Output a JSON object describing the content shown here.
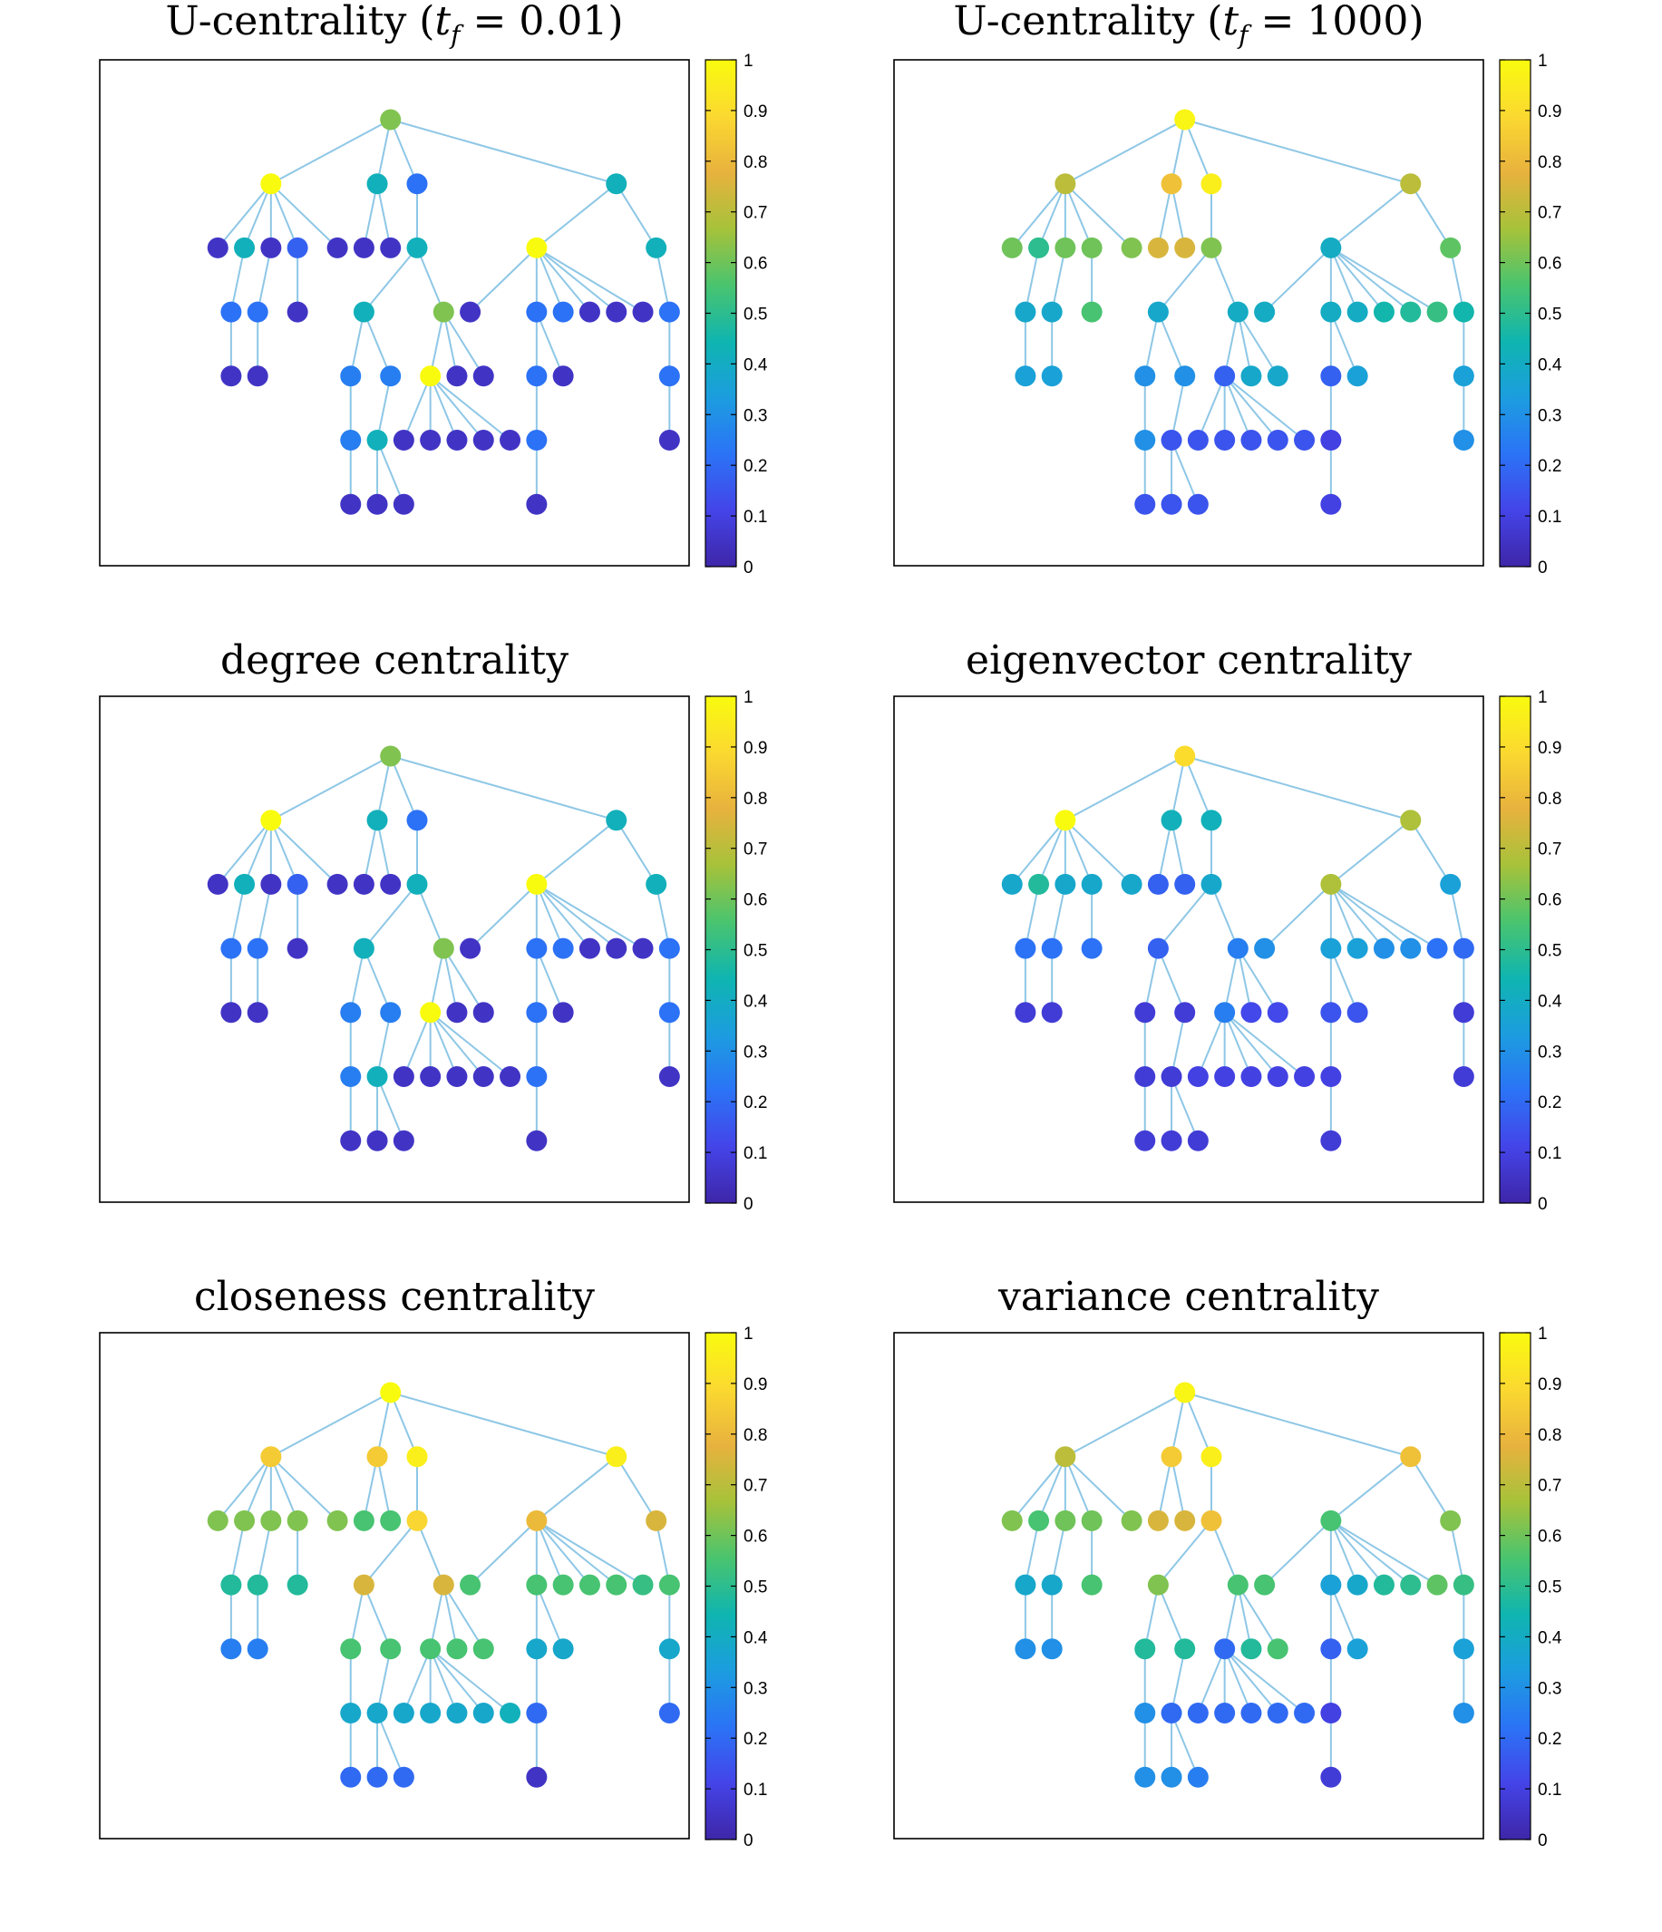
{
  "figure": {
    "colormap": "parula",
    "colormap_stops": [
      "#3e26a8",
      "#4444e8",
      "#2b73f6",
      "#1c9ddf",
      "#0fb5b0",
      "#4ac46e",
      "#a7c23a",
      "#e8b23e",
      "#fbd930",
      "#f9fb0e"
    ],
    "edge_color": "#8ec7e6"
  },
  "graph": {
    "nodes": [
      {
        "id": 0,
        "x": 9,
        "y": 1
      },
      {
        "id": 1,
        "x": 4.5,
        "y": 2
      },
      {
        "id": 2,
        "x": 8.5,
        "y": 2
      },
      {
        "id": 3,
        "x": 10,
        "y": 2
      },
      {
        "id": 4,
        "x": 17.5,
        "y": 2
      },
      {
        "id": 5,
        "x": 2.5,
        "y": 3
      },
      {
        "id": 6,
        "x": 3.5,
        "y": 3
      },
      {
        "id": 7,
        "x": 4.5,
        "y": 3
      },
      {
        "id": 8,
        "x": 5.5,
        "y": 3
      },
      {
        "id": 9,
        "x": 7,
        "y": 3
      },
      {
        "id": 10,
        "x": 8,
        "y": 3
      },
      {
        "id": 11,
        "x": 9,
        "y": 3
      },
      {
        "id": 12,
        "x": 10,
        "y": 3
      },
      {
        "id": 13,
        "x": 14.5,
        "y": 3
      },
      {
        "id": 14,
        "x": 19,
        "y": 3
      },
      {
        "id": 15,
        "x": 3,
        "y": 4
      },
      {
        "id": 16,
        "x": 4,
        "y": 4
      },
      {
        "id": 17,
        "x": 5.5,
        "y": 4
      },
      {
        "id": 18,
        "x": 8,
        "y": 4
      },
      {
        "id": 19,
        "x": 11,
        "y": 4
      },
      {
        "id": 20,
        "x": 12,
        "y": 4
      },
      {
        "id": 21,
        "x": 14.5,
        "y": 4
      },
      {
        "id": 22,
        "x": 15.5,
        "y": 4
      },
      {
        "id": 23,
        "x": 16.5,
        "y": 4
      },
      {
        "id": 24,
        "x": 17.5,
        "y": 4
      },
      {
        "id": 25,
        "x": 18.5,
        "y": 4
      },
      {
        "id": 26,
        "x": 19.5,
        "y": 4
      },
      {
        "id": 27,
        "x": 3,
        "y": 5
      },
      {
        "id": 28,
        "x": 4,
        "y": 5
      },
      {
        "id": 29,
        "x": 7.5,
        "y": 5
      },
      {
        "id": 30,
        "x": 9,
        "y": 5
      },
      {
        "id": 31,
        "x": 10.5,
        "y": 5
      },
      {
        "id": 32,
        "x": 11.5,
        "y": 5
      },
      {
        "id": 33,
        "x": 12.5,
        "y": 5
      },
      {
        "id": 34,
        "x": 14.5,
        "y": 5
      },
      {
        "id": 35,
        "x": 15.5,
        "y": 5
      },
      {
        "id": 36,
        "x": 19.5,
        "y": 5
      },
      {
        "id": 37,
        "x": 7.5,
        "y": 6
      },
      {
        "id": 38,
        "x": 8.5,
        "y": 6
      },
      {
        "id": 39,
        "x": 9.5,
        "y": 6
      },
      {
        "id": 40,
        "x": 10.5,
        "y": 6
      },
      {
        "id": 41,
        "x": 11.5,
        "y": 6
      },
      {
        "id": 42,
        "x": 12.5,
        "y": 6
      },
      {
        "id": 43,
        "x": 13.5,
        "y": 6
      },
      {
        "id": 44,
        "x": 14.5,
        "y": 6
      },
      {
        "id": 45,
        "x": 19.5,
        "y": 6
      },
      {
        "id": 46,
        "x": 7.5,
        "y": 7
      },
      {
        "id": 47,
        "x": 8.5,
        "y": 7
      },
      {
        "id": 48,
        "x": 9.5,
        "y": 7
      },
      {
        "id": 49,
        "x": 14.5,
        "y": 7
      }
    ],
    "edges": [
      [
        0,
        1
      ],
      [
        0,
        2
      ],
      [
        0,
        3
      ],
      [
        0,
        4
      ],
      [
        1,
        5
      ],
      [
        1,
        6
      ],
      [
        1,
        7
      ],
      [
        1,
        8
      ],
      [
        1,
        9
      ],
      [
        2,
        10
      ],
      [
        2,
        11
      ],
      [
        3,
        12
      ],
      [
        4,
        13
      ],
      [
        4,
        14
      ],
      [
        6,
        15
      ],
      [
        7,
        16
      ],
      [
        8,
        17
      ],
      [
        12,
        18
      ],
      [
        12,
        19
      ],
      [
        13,
        20
      ],
      [
        13,
        21
      ],
      [
        13,
        22
      ],
      [
        13,
        23
      ],
      [
        13,
        24
      ],
      [
        13,
        25
      ],
      [
        14,
        26
      ],
      [
        15,
        27
      ],
      [
        16,
        28
      ],
      [
        18,
        29
      ],
      [
        18,
        30
      ],
      [
        19,
        31
      ],
      [
        19,
        32
      ],
      [
        19,
        33
      ],
      [
        21,
        34
      ],
      [
        21,
        35
      ],
      [
        26,
        36
      ],
      [
        29,
        37
      ],
      [
        30,
        38
      ],
      [
        31,
        39
      ],
      [
        31,
        40
      ],
      [
        31,
        41
      ],
      [
        31,
        42
      ],
      [
        31,
        43
      ],
      [
        34,
        44
      ],
      [
        36,
        45
      ],
      [
        37,
        46
      ],
      [
        38,
        47
      ],
      [
        38,
        48
      ],
      [
        44,
        49
      ]
    ]
  },
  "chart_data": [
    {
      "type": "network",
      "title_text": "U-centrality (",
      "title_var": "t",
      "title_sub": "f",
      "title_rest": " = 0.01)",
      "colorbar": {
        "range": [
          0,
          1
        ],
        "ticks": [
          "0",
          "0.1",
          "0.2",
          "0.3",
          "0.4",
          "0.5",
          "0.6",
          "0.7",
          "0.8",
          "0.9",
          "1"
        ]
      },
      "values": [
        0.62,
        1.0,
        0.42,
        0.22,
        0.42,
        0.05,
        0.42,
        0.05,
        0.18,
        0.05,
        0.05,
        0.05,
        0.42,
        1.0,
        0.42,
        0.22,
        0.22,
        0.05,
        0.42,
        0.62,
        0.05,
        0.22,
        0.22,
        0.05,
        0.05,
        0.05,
        0.22,
        0.05,
        0.05,
        0.25,
        0.25,
        1.0,
        0.05,
        0.05,
        0.22,
        0.05,
        0.22,
        0.25,
        0.42,
        0.05,
        0.05,
        0.05,
        0.05,
        0.05,
        0.22,
        0.05,
        0.05,
        0.05,
        0.05,
        0.05
      ]
    },
    {
      "type": "network",
      "title_text": "U-centrality (",
      "title_var": "t",
      "title_sub": "f",
      "title_rest": " = 1000)",
      "colorbar": {
        "range": [
          0,
          1
        ],
        "ticks": [
          "0",
          "0.1",
          "0.2",
          "0.3",
          "0.4",
          "0.5",
          "0.6",
          "0.7",
          "0.8",
          "0.9",
          "1"
        ]
      },
      "values": [
        0.98,
        0.7,
        0.82,
        0.96,
        0.7,
        0.6,
        0.5,
        0.6,
        0.6,
        0.62,
        0.75,
        0.75,
        0.62,
        0.4,
        0.58,
        0.38,
        0.38,
        0.55,
        0.38,
        0.4,
        0.4,
        0.4,
        0.4,
        0.45,
        0.48,
        0.52,
        0.45,
        0.35,
        0.35,
        0.3,
        0.3,
        0.18,
        0.38,
        0.38,
        0.18,
        0.35,
        0.35,
        0.3,
        0.15,
        0.15,
        0.15,
        0.15,
        0.15,
        0.15,
        0.1,
        0.3,
        0.15,
        0.15,
        0.15,
        0.1
      ]
    },
    {
      "type": "network",
      "title_text": "degree centrality",
      "colorbar": {
        "range": [
          0,
          1
        ],
        "ticks": [
          "0",
          "0.1",
          "0.2",
          "0.3",
          "0.4",
          "0.5",
          "0.6",
          "0.7",
          "0.8",
          "0.9",
          "1"
        ]
      },
      "values": [
        0.62,
        1.0,
        0.42,
        0.22,
        0.42,
        0.05,
        0.42,
        0.05,
        0.18,
        0.05,
        0.05,
        0.05,
        0.42,
        1.0,
        0.42,
        0.22,
        0.22,
        0.05,
        0.42,
        0.62,
        0.05,
        0.22,
        0.22,
        0.05,
        0.05,
        0.05,
        0.22,
        0.05,
        0.05,
        0.25,
        0.25,
        1.0,
        0.05,
        0.05,
        0.22,
        0.05,
        0.22,
        0.25,
        0.42,
        0.05,
        0.05,
        0.05,
        0.05,
        0.05,
        0.22,
        0.05,
        0.05,
        0.05,
        0.05,
        0.05
      ]
    },
    {
      "type": "network",
      "title_text": "eigenvector centrality",
      "colorbar": {
        "range": [
          0,
          1
        ],
        "ticks": [
          "0",
          "0.1",
          "0.2",
          "0.3",
          "0.4",
          "0.5",
          "0.6",
          "0.7",
          "0.8",
          "0.9",
          "1"
        ]
      },
      "values": [
        0.9,
        1.0,
        0.42,
        0.42,
        0.68,
        0.38,
        0.48,
        0.38,
        0.38,
        0.38,
        0.18,
        0.18,
        0.38,
        0.68,
        0.35,
        0.22,
        0.22,
        0.22,
        0.18,
        0.25,
        0.3,
        0.35,
        0.35,
        0.3,
        0.3,
        0.22,
        0.2,
        0.08,
        0.08,
        0.08,
        0.08,
        0.25,
        0.12,
        0.12,
        0.15,
        0.15,
        0.08,
        0.08,
        0.08,
        0.1,
        0.1,
        0.1,
        0.1,
        0.1,
        0.1,
        0.08,
        0.08,
        0.08,
        0.08,
        0.08
      ]
    },
    {
      "type": "network",
      "title_text": "closeness centrality",
      "colorbar": {
        "range": [
          0,
          1
        ],
        "ticks": [
          "0",
          "0.1",
          "0.2",
          "0.3",
          "0.4",
          "0.5",
          "0.6",
          "0.7",
          "0.8",
          "0.9",
          "1"
        ]
      },
      "values": [
        1.0,
        0.85,
        0.85,
        0.96,
        0.96,
        0.62,
        0.62,
        0.62,
        0.62,
        0.62,
        0.55,
        0.55,
        0.88,
        0.8,
        0.75,
        0.48,
        0.48,
        0.48,
        0.75,
        0.75,
        0.55,
        0.55,
        0.55,
        0.55,
        0.55,
        0.52,
        0.55,
        0.25,
        0.25,
        0.55,
        0.55,
        0.55,
        0.55,
        0.55,
        0.38,
        0.38,
        0.38,
        0.38,
        0.38,
        0.38,
        0.38,
        0.38,
        0.38,
        0.42,
        0.2,
        0.2,
        0.2,
        0.2,
        0.2,
        0.05
      ]
    },
    {
      "type": "network",
      "title_text": "variance centrality",
      "colorbar": {
        "range": [
          0,
          1
        ],
        "ticks": [
          "0",
          "0.1",
          "0.2",
          "0.3",
          "0.4",
          "0.5",
          "0.6",
          "0.7",
          "0.8",
          "0.9",
          "1"
        ]
      },
      "values": [
        0.98,
        0.7,
        0.85,
        0.96,
        0.82,
        0.62,
        0.55,
        0.6,
        0.6,
        0.62,
        0.75,
        0.75,
        0.82,
        0.55,
        0.62,
        0.38,
        0.38,
        0.55,
        0.62,
        0.55,
        0.55,
        0.35,
        0.38,
        0.48,
        0.5,
        0.58,
        0.52,
        0.3,
        0.3,
        0.48,
        0.48,
        0.2,
        0.48,
        0.55,
        0.18,
        0.35,
        0.35,
        0.3,
        0.2,
        0.2,
        0.2,
        0.2,
        0.2,
        0.2,
        0.1,
        0.3,
        0.3,
        0.3,
        0.25,
        0.08
      ]
    }
  ]
}
